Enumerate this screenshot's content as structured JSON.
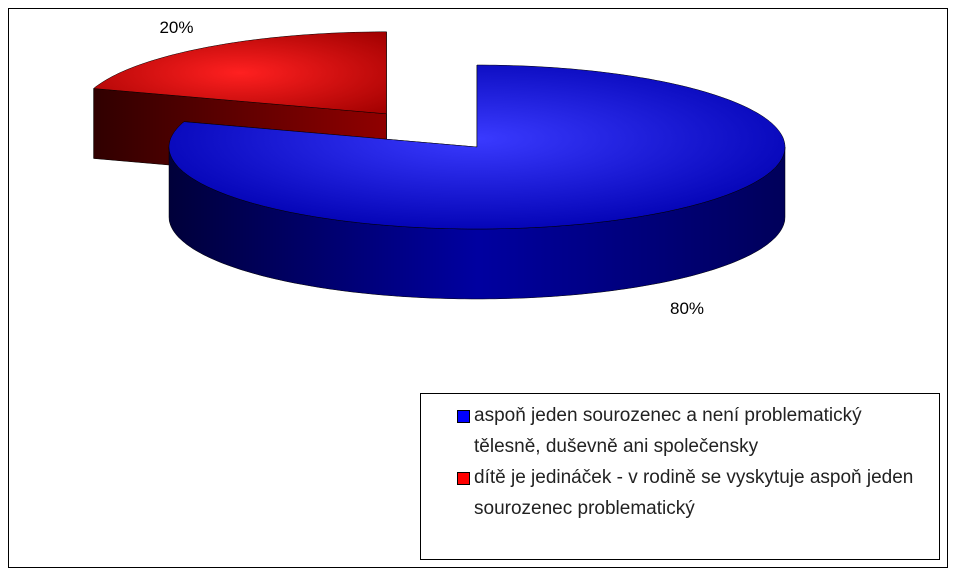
{
  "chart_data": {
    "type": "pie",
    "three_d": true,
    "categories": [
      "aspoň jeden sourozenec a není problematický tělesně, duševně ani společensky",
      "dítě je jedináček - v rodině se vyskytuje aspoň jeden sourozenec problematický"
    ],
    "values": [
      80,
      20
    ],
    "value_labels": [
      "80%",
      "20%"
    ],
    "colors": [
      "#0000ff",
      "#ff0000"
    ],
    "legend": "bottom-right"
  }
}
